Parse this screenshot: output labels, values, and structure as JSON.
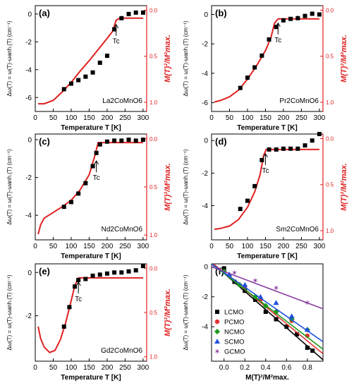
{
  "figure": {
    "panels_left_label": "Δω(T) = ω(T)-ωanh.(T) (cm⁻¹)",
    "right_axis_label": "M(T)²/M²max.",
    "xlabel": "Temperature T [K]",
    "tc_label": "Tc"
  },
  "chart_data": [
    {
      "panel": "(a)",
      "type": "scatter",
      "compound": "La2CoMnO6",
      "xlabel": "Temperature T [K]",
      "ylabel": "Δω(T) = ω(T)-ωanh.(T) (cm⁻¹)",
      "y2label": "M(T)²/M²max.",
      "xlim": [
        0,
        310
      ],
      "ylim": [
        -7,
        0.6
      ],
      "y2lim": [
        1.1,
        -0.05
      ],
      "xticks": [
        0,
        50,
        100,
        150,
        200,
        250,
        300
      ],
      "yticks": [
        0,
        -2,
        -4,
        -6
      ],
      "y2ticks": [
        0.0,
        0.5,
        1.0
      ],
      "tc": 225,
      "points": [
        [
          80,
          -5.4
        ],
        [
          100,
          -5.0
        ],
        [
          120,
          -4.75
        ],
        [
          140,
          -4.5
        ],
        [
          160,
          -4.2
        ],
        [
          180,
          -3.5
        ],
        [
          200,
          -3.0
        ],
        [
          220,
          -1.1
        ],
        [
          240,
          -0.3
        ],
        [
          260,
          0.0
        ],
        [
          280,
          0.1
        ],
        [
          300,
          0.1
        ]
      ],
      "fit": [
        [
          8,
          -6.45
        ],
        [
          25,
          -6.45
        ],
        [
          50,
          -6.2
        ],
        [
          75,
          -5.6
        ],
        [
          100,
          -4.9
        ],
        [
          125,
          -4.1
        ],
        [
          150,
          -3.35
        ],
        [
          175,
          -2.55
        ],
        [
          200,
          -1.75
        ],
        [
          215,
          -1.25
        ],
        [
          225,
          -0.45
        ],
        [
          235,
          -0.3
        ],
        [
          300,
          -0.3
        ]
      ]
    },
    {
      "panel": "(b)",
      "type": "scatter",
      "compound": "Pr2CoMnO6",
      "xlabel": "Temperature T [K]",
      "ylabel": "Δω(T) = ω(T)-ωanh.(T) (cm⁻¹)",
      "y2label": "M(T)²/M²max.",
      "xlim": [
        0,
        310
      ],
      "ylim": [
        -6.6,
        0.6
      ],
      "y2lim": [
        1.1,
        -0.05
      ],
      "xticks": [
        0,
        50,
        100,
        150,
        200,
        250,
        300
      ],
      "yticks": [
        0,
        -2,
        -4,
        -6
      ],
      "y2ticks": [
        0.0,
        0.5,
        1.0
      ],
      "tc": 185,
      "points": [
        [
          80,
          -5.0
        ],
        [
          100,
          -4.3
        ],
        [
          120,
          -3.6
        ],
        [
          140,
          -2.8
        ],
        [
          160,
          -1.7
        ],
        [
          180,
          -0.85
        ],
        [
          200,
          -0.4
        ],
        [
          220,
          -0.3
        ],
        [
          240,
          -0.25
        ],
        [
          260,
          -0.1
        ],
        [
          280,
          0.05
        ],
        [
          300,
          0.0
        ]
      ],
      "fit": [
        [
          8,
          -5.95
        ],
        [
          25,
          -5.85
        ],
        [
          50,
          -5.6
        ],
        [
          75,
          -5.15
        ],
        [
          100,
          -4.4
        ],
        [
          125,
          -3.5
        ],
        [
          150,
          -2.45
        ],
        [
          165,
          -1.6
        ],
        [
          175,
          -0.6
        ],
        [
          185,
          -0.3
        ],
        [
          300,
          -0.3
        ]
      ]
    },
    {
      "panel": "(c)",
      "type": "scatter",
      "compound": "Nd2CoMnO6",
      "xlabel": "Temperature T [K]",
      "ylabel": "Δω(T) = ω(T)-ωanh.(T) (cm⁻¹)",
      "y2label": "M(T)²/M²max.",
      "xlim": [
        0,
        310
      ],
      "ylim": [
        -5.3,
        0.3
      ],
      "y2lim": [
        1.05,
        -0.05
      ],
      "xticks": [
        0,
        50,
        100,
        150,
        200,
        250,
        300
      ],
      "yticks": [
        0,
        -2,
        -4
      ],
      "y2ticks": [
        0.0,
        0.5,
        1.0
      ],
      "tc": 170,
      "points": [
        [
          80,
          -3.55
        ],
        [
          100,
          -3.3
        ],
        [
          120,
          -2.85
        ],
        [
          140,
          -2.3
        ],
        [
          160,
          -1.4
        ],
        [
          170,
          -0.7
        ],
        [
          180,
          -0.25
        ],
        [
          200,
          -0.1
        ],
        [
          220,
          -0.05
        ],
        [
          240,
          -0.05
        ],
        [
          260,
          0.0
        ],
        [
          280,
          -0.05
        ],
        [
          300,
          0.0
        ]
      ],
      "fit": [
        [
          8,
          -5.0
        ],
        [
          15,
          -4.5
        ],
        [
          25,
          -4.15
        ],
        [
          50,
          -3.85
        ],
        [
          75,
          -3.55
        ],
        [
          100,
          -3.2
        ],
        [
          125,
          -2.65
        ],
        [
          150,
          -1.85
        ],
        [
          165,
          -0.9
        ],
        [
          175,
          -0.15
        ],
        [
          300,
          -0.15
        ]
      ]
    },
    {
      "panel": "(d)",
      "type": "scatter",
      "compound": "Sm2CoMnO6",
      "xlabel": "Temperature T [K]",
      "ylabel": "Δω(T) = ω(T)-ωanh.(T) (cm⁻¹)",
      "y2label": "M(T)²/M²max.",
      "xlim": [
        0,
        310
      ],
      "ylim": [
        -6.1,
        0.4
      ],
      "y2lim": [
        1.1,
        -0.05
      ],
      "xticks": [
        0,
        50,
        100,
        150,
        200,
        250,
        300
      ],
      "yticks": [
        0,
        -2,
        -4
      ],
      "y2ticks": [
        0.0,
        0.5,
        1.0
      ],
      "tc": 150,
      "points": [
        [
          80,
          -4.2
        ],
        [
          100,
          -3.7
        ],
        [
          120,
          -2.8
        ],
        [
          140,
          -1.2
        ],
        [
          160,
          -0.55
        ],
        [
          180,
          -0.55
        ],
        [
          200,
          -0.5
        ],
        [
          220,
          -0.5
        ],
        [
          240,
          -0.5
        ],
        [
          260,
          -0.3
        ],
        [
          280,
          0.0
        ],
        [
          300,
          0.4
        ]
      ],
      "fit": [
        [
          8,
          -5.45
        ],
        [
          25,
          -5.4
        ],
        [
          50,
          -5.25
        ],
        [
          75,
          -4.85
        ],
        [
          100,
          -4.1
        ],
        [
          120,
          -3.15
        ],
        [
          135,
          -2.1
        ],
        [
          145,
          -0.9
        ],
        [
          152,
          -0.55
        ],
        [
          300,
          -0.55
        ]
      ]
    },
    {
      "panel": "(e)",
      "type": "scatter",
      "compound": "Gd2CoMnO6",
      "xlabel": "Temperature T [K]",
      "ylabel": "Δω(T) = ω(T)-ωanh.(T) (cm⁻¹)",
      "y2label": "M(T)²/M²max.",
      "xlim": [
        0,
        310
      ],
      "ylim": [
        -4.1,
        0.4
      ],
      "y2lim": [
        1.05,
        -0.05
      ],
      "xticks": [
        0,
        50,
        100,
        150,
        200,
        250,
        300
      ],
      "yticks": [
        0,
        -2
      ],
      "y2ticks": [
        0.0,
        0.5,
        1.0
      ],
      "tc": 120,
      "points": [
        [
          80,
          -2.5
        ],
        [
          95,
          -1.6
        ],
        [
          110,
          -0.65
        ],
        [
          120,
          -0.35
        ],
        [
          140,
          -0.3
        ],
        [
          160,
          -0.15
        ],
        [
          180,
          -0.1
        ],
        [
          200,
          -0.05
        ],
        [
          220,
          0.0
        ],
        [
          240,
          0.0
        ],
        [
          260,
          0.05
        ],
        [
          280,
          0.1
        ],
        [
          300,
          0.3
        ]
      ],
      "fit": [
        [
          8,
          -2.5
        ],
        [
          15,
          -3.05
        ],
        [
          25,
          -3.45
        ],
        [
          40,
          -3.7
        ],
        [
          55,
          -3.6
        ],
        [
          70,
          -3.1
        ],
        [
          85,
          -2.3
        ],
        [
          100,
          -1.3
        ],
        [
          110,
          -0.6
        ],
        [
          120,
          -0.25
        ],
        [
          300,
          -0.25
        ]
      ]
    },
    {
      "panel": "(f)",
      "type": "scatter",
      "xlabel": "M(T)²/M²max.",
      "ylabel": "Δω(T) = ω(T)-ωanh.(T) (cm⁻¹)",
      "xlim": [
        -0.12,
        0.95
      ],
      "ylim": [
        -6.3,
        0.2
      ],
      "xticks": [
        0.0,
        0.2,
        0.4,
        0.6,
        0.8
      ],
      "yticks": [
        0,
        -2,
        -4
      ],
      "legend_position": "bottom-left",
      "series": [
        {
          "name": "LCMO",
          "color": "#000000",
          "marker": "square",
          "points": [
            [
              0.0,
              -0.1
            ],
            [
              0.1,
              -1.0
            ],
            [
              0.2,
              -1.6
            ],
            [
              0.3,
              -2.2
            ],
            [
              0.4,
              -3.0
            ],
            [
              0.5,
              -3.5
            ],
            [
              0.6,
              -4.0
            ],
            [
              0.7,
              -4.5
            ],
            [
              0.8,
              -5.4
            ],
            [
              0.85,
              -5.6
            ]
          ],
          "fit": [
            [
              -0.12,
              0.3
            ],
            [
              0.95,
              -6.2
            ]
          ]
        },
        {
          "name": "PCMO",
          "color": "#e53030",
          "marker": "circle",
          "points": [
            [
              0.05,
              -0.6
            ],
            [
              0.2,
              -1.3
            ],
            [
              0.35,
              -2.2
            ],
            [
              0.5,
              -3.0
            ],
            [
              0.65,
              -3.6
            ],
            [
              0.8,
              -4.6
            ]
          ],
          "fit": [
            [
              -0.12,
              0.3
            ],
            [
              0.95,
              -5.8
            ]
          ]
        },
        {
          "name": "NCMO",
          "color": "#1a9a1a",
          "marker": "diamond",
          "points": [
            [
              0.0,
              -0.3
            ],
            [
              0.15,
              -1.2
            ],
            [
              0.3,
              -2.0
            ],
            [
              0.4,
              -2.6
            ],
            [
              0.5,
              -3.0
            ],
            [
              0.65,
              -3.5
            ],
            [
              0.8,
              -4.2
            ]
          ],
          "fit": [
            [
              -0.12,
              0.2
            ],
            [
              0.95,
              -5.5
            ]
          ]
        },
        {
          "name": "SCMO",
          "color": "#2050e0",
          "marker": "triangle",
          "points": [
            [
              0.05,
              -0.5
            ],
            [
              0.2,
              -1.2
            ],
            [
              0.35,
              -2.0
            ],
            [
              0.5,
              -2.4
            ],
            [
              0.65,
              -3.3
            ],
            [
              0.8,
              -4.2
            ]
          ],
          "fit": [
            [
              -0.12,
              0.2
            ],
            [
              0.95,
              -5.0
            ]
          ]
        },
        {
          "name": "GCMO",
          "color": "#8a3fa0",
          "marker": "star",
          "points": [
            [
              0.1,
              -0.4
            ],
            [
              0.3,
              -0.9
            ],
            [
              0.5,
              -1.4
            ],
            [
              0.8,
              -2.4
            ]
          ],
          "fit": [
            [
              -0.12,
              0.0
            ],
            [
              0.95,
              -2.8
            ]
          ]
        }
      ]
    }
  ]
}
